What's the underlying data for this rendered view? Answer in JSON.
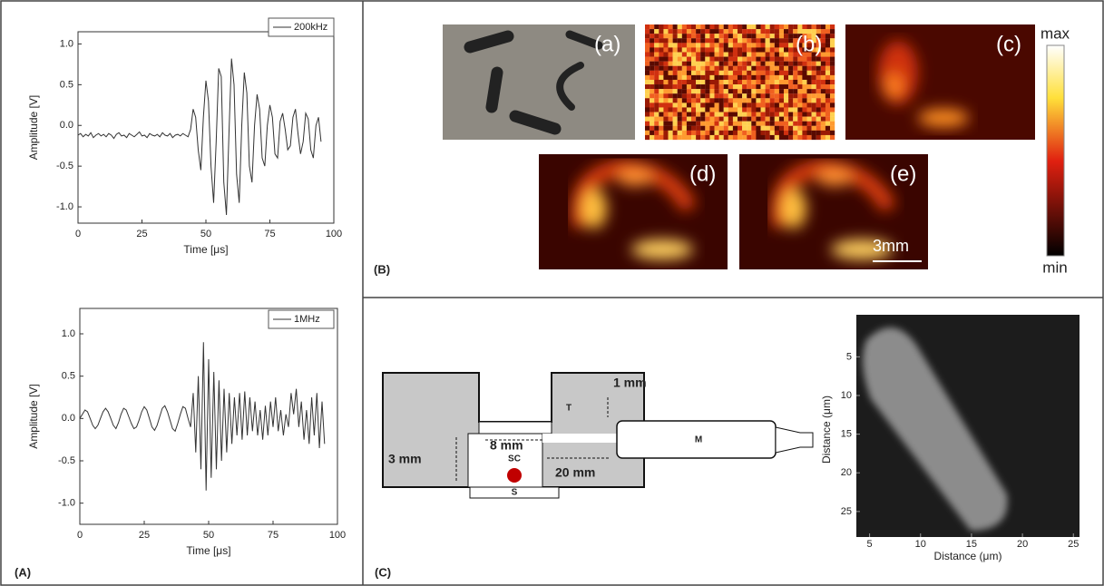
{
  "chart_data": [
    {
      "type": "line",
      "xlabel": "Time [μs]",
      "ylabel": "Amplitude [V]",
      "x": [
        0,
        1,
        2,
        3,
        4,
        5,
        6,
        7,
        8,
        9,
        10,
        11,
        12,
        13,
        14,
        15,
        16,
        17,
        18,
        19,
        20,
        21,
        22,
        23,
        24,
        25,
        26,
        27,
        28,
        29,
        30,
        31,
        32,
        33,
        34,
        35,
        36,
        37,
        38,
        39,
        40,
        41,
        42,
        43,
        44,
        45,
        46,
        47,
        48,
        49,
        50,
        51,
        52,
        53,
        54,
        55,
        56,
        57,
        58,
        59,
        60,
        61,
        62,
        63,
        64,
        65,
        66,
        67,
        68,
        69,
        70,
        71,
        72,
        73,
        74,
        75,
        76,
        77,
        78,
        79,
        80,
        81,
        82,
        83,
        84,
        85,
        86,
        87,
        88,
        89,
        90,
        91,
        92,
        93,
        94,
        95
      ],
      "series": [
        {
          "name": "200kHz",
          "color": "#333333",
          "values": [
            -0.12,
            -0.1,
            -0.14,
            -0.11,
            -0.13,
            -0.09,
            -0.15,
            -0.12,
            -0.1,
            -0.13,
            -0.11,
            -0.14,
            -0.1,
            -0.12,
            -0.16,
            -0.11,
            -0.09,
            -0.13,
            -0.12,
            -0.15,
            -0.1,
            -0.12,
            -0.14,
            -0.11,
            -0.08,
            -0.13,
            -0.12,
            -0.15,
            -0.1,
            -0.12,
            -0.13,
            -0.11,
            -0.14,
            -0.09,
            -0.12,
            -0.13,
            -0.1,
            -0.15,
            -0.12,
            -0.11,
            -0.13,
            -0.1,
            -0.12,
            -0.14,
            -0.05,
            0.2,
            0.1,
            -0.3,
            -0.55,
            0.1,
            0.55,
            0.3,
            -0.5,
            -0.95,
            -0.2,
            0.7,
            0.6,
            -0.7,
            -1.1,
            -0.1,
            0.82,
            0.5,
            -0.6,
            -0.95,
            0,
            0.65,
            0.4,
            -0.5,
            -0.7,
            0,
            0.38,
            0.2,
            -0.4,
            -0.5,
            0,
            0.25,
            0.1,
            -0.35,
            -0.4,
            0.05,
            0.15,
            -0.05,
            -0.3,
            -0.25,
            0.1,
            0.2,
            -0.1,
            -0.35,
            -0.2,
            0.15,
            0.08,
            -0.3,
            -0.4,
            0,
            0.1,
            -0.2
          ]
        }
      ],
      "xlim": [
        0,
        100
      ],
      "ylim": [
        -1.2,
        1.15
      ],
      "xticks": [
        0,
        25,
        50,
        75,
        100
      ],
      "yticks": [
        {
          "value": -1,
          "label": "-1.0"
        },
        -0.5,
        {
          "value": 0,
          "label": "0.0"
        },
        0.5,
        {
          "value": 1,
          "label": "1.0"
        }
      ]
    },
    {
      "type": "line",
      "xlabel": "Time [μs]",
      "ylabel": "Amplitude [V]",
      "x": [
        0,
        1,
        2,
        3,
        4,
        5,
        6,
        7,
        8,
        9,
        10,
        11,
        12,
        13,
        14,
        15,
        16,
        17,
        18,
        19,
        20,
        21,
        22,
        23,
        24,
        25,
        26,
        27,
        28,
        29,
        30,
        31,
        32,
        33,
        34,
        35,
        36,
        37,
        38,
        39,
        40,
        41,
        42,
        43,
        44,
        45,
        46,
        47,
        48,
        49,
        50,
        51,
        52,
        53,
        54,
        55,
        56,
        57,
        58,
        59,
        60,
        61,
        62,
        63,
        64,
        65,
        66,
        67,
        68,
        69,
        70,
        71,
        72,
        73,
        74,
        75,
        76,
        77,
        78,
        79,
        80,
        81,
        82,
        83,
        84,
        85,
        86,
        87,
        88,
        89,
        90,
        91,
        92,
        93,
        94,
        95
      ],
      "series": [
        {
          "name": "1MHz",
          "color": "#333333",
          "values": [
            0,
            0.05,
            0.1,
            0.08,
            0,
            -0.08,
            -0.12,
            -0.08,
            0,
            0.08,
            0.12,
            0.08,
            0,
            -0.08,
            -0.12,
            -0.05,
            0.05,
            0.12,
            0.1,
            0.02,
            -0.06,
            -0.12,
            -0.1,
            -0.02,
            0.08,
            0.14,
            0.1,
            0,
            -0.1,
            -0.14,
            -0.08,
            0.02,
            0.12,
            0.15,
            0.08,
            -0.02,
            -0.12,
            -0.15,
            -0.06,
            0.05,
            0.14,
            0.12,
            0,
            -0.1,
            0.3,
            -0.4,
            0.5,
            -0.6,
            0.9,
            -0.85,
            0.7,
            -0.7,
            0.55,
            -0.6,
            0.45,
            -0.5,
            0.35,
            -0.4,
            0.3,
            -0.3,
            0.25,
            -0.2,
            0.3,
            -0.25,
            0.32,
            -0.2,
            0.25,
            -0.15,
            0.2,
            -0.2,
            0.1,
            -0.25,
            0.15,
            -0.2,
            0.2,
            -0.1,
            0.25,
            -0.15,
            0.1,
            -0.2,
            0.05,
            -0.1,
            0.3,
            0.05,
            0.35,
            -0.1,
            0.2,
            -0.25,
            0.1,
            -0.3,
            0.25,
            -0.2,
            0.3,
            -0.35,
            0.2,
            -0.3
          ]
        }
      ],
      "xlim": [
        0,
        100
      ],
      "ylim": [
        -1.25,
        1.3
      ],
      "xticks": [
        0,
        25,
        50,
        75,
        100
      ],
      "yticks": [
        {
          "value": -1,
          "label": "-1.0"
        },
        -0.5,
        {
          "value": 0,
          "label": "0.0"
        },
        0.5,
        {
          "value": 1,
          "label": "1.0"
        }
      ]
    },
    {
      "type": "heatmap",
      "xlabel": "Distance (μm)",
      "ylabel": "Distance (μm)",
      "xlim": [
        3.7,
        25.6
      ],
      "ylim": [
        0.5,
        28.3
      ],
      "xticks": [
        5,
        10,
        15,
        20,
        25
      ],
      "yticks": [
        5,
        10,
        15,
        20,
        25
      ]
    }
  ],
  "panel_labels": {
    "A": "(A)",
    "B": "(B)",
    "C": "(C)"
  },
  "images": {
    "labels": [
      "(a)",
      "(b)",
      "(c)",
      "(d)",
      "(e)"
    ],
    "scale_bar": "3mm",
    "colorbar": {
      "max": "max",
      "min": "min"
    }
  },
  "diagram": {
    "labels": {
      "gap": "1 mm",
      "width": "8 mm",
      "height": "3 mm",
      "length": "20 mm",
      "chamber": "SC",
      "slide": "S",
      "transducer": "T",
      "microscope": "M"
    }
  }
}
